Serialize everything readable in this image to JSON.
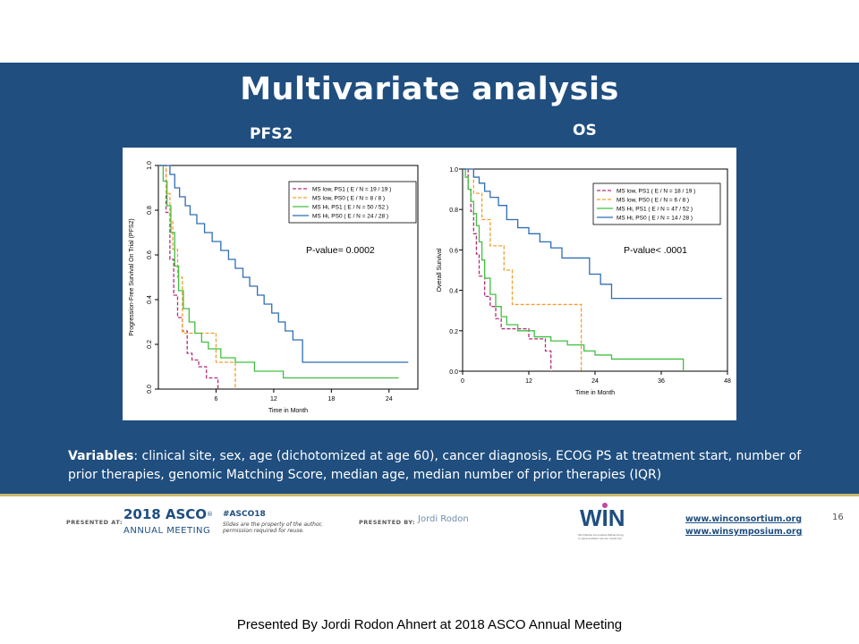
{
  "slide": {
    "title": "Multivariate analysis",
    "left_label": "PFS2",
    "right_label": "OS",
    "variables_label": "Variables",
    "variables_text": ": clinical site, sex, age (dichotomized at age 60), cancer diagnosis, ECOG PS at treatment start, number of prior therapies, genomic Matching Score, median age, median number of prior therapies (IQR)",
    "page_number": "16",
    "caption": "Presented By Jordi Rodon Ahnert at 2018 ASCO Annual Meeting"
  },
  "footer": {
    "presented_at": "PRESENTED AT:",
    "asco_year": "2018",
    "asco_name": "ASCO",
    "asco_reg": "®",
    "asco_sub": "ANNUAL MEETING",
    "hashtag": "#ASCO18",
    "note_line1": "Slides are the property of the author,",
    "note_line2": "permission required for reuse.",
    "presented_by": "PRESENTED BY:",
    "presenter": "Jordi Rodon",
    "win_logo": "WIN",
    "win_small": "Worldwide Innovative Networking in personalized cancer medicine",
    "link1": "www.winconsortium.org",
    "link2": "www.winsymposium.org"
  },
  "chart_data": [
    {
      "type": "line",
      "title": "",
      "xlabel": "Time in Month",
      "ylabel": "Progression-Free Survival On Trial (PFS2)",
      "xlim": [
        0,
        27
      ],
      "ylim": [
        0,
        1
      ],
      "xticks": [
        6,
        12,
        18,
        24
      ],
      "yticks": [
        0.0,
        0.2,
        0.4,
        0.6,
        0.8,
        1.0
      ],
      "ytick_labels": [
        "0.0",
        "0.2",
        "0.4",
        "0.6",
        "0.8",
        "1.0"
      ],
      "annotation": "P-value= 0.0002",
      "legend_position": "top-right",
      "series": [
        {
          "name": "MS low, PS1  ( E / N = 19 / 19 )",
          "color": "#b0307a",
          "dash": "dash",
          "x": [
            0,
            0.8,
            1.2,
            1.6,
            2.0,
            2.5,
            3.0,
            3.5,
            4.2,
            5.0,
            5.5,
            6.2
          ],
          "y": [
            1.0,
            0.79,
            0.58,
            0.42,
            0.32,
            0.26,
            0.16,
            0.13,
            0.1,
            0.05,
            0.05,
            0.0
          ]
        },
        {
          "name": "MS low, PS0  ( E / N = 8 / 8 )",
          "color": "#f0a030",
          "dash": "dash",
          "x": [
            0,
            0.8,
            1.2,
            1.5,
            2.0,
            2.5,
            6.0,
            8.0
          ],
          "y": [
            1.0,
            0.875,
            0.75,
            0.625,
            0.5,
            0.25,
            0.12,
            0.0
          ]
        },
        {
          "name": "MS Hi, PS1  ( E / N = 50 / 52 )",
          "color": "#40c040",
          "dash": "solid",
          "x": [
            0,
            0.5,
            0.9,
            1.3,
            1.7,
            2.1,
            2.6,
            3.2,
            3.8,
            4.5,
            5.2,
            6.5,
            8.0,
            10.0,
            13.0,
            25.0
          ],
          "y": [
            1.0,
            0.93,
            0.82,
            0.7,
            0.55,
            0.44,
            0.36,
            0.3,
            0.25,
            0.21,
            0.18,
            0.14,
            0.12,
            0.08,
            0.05,
            0.05
          ]
        },
        {
          "name": "MS Hi, PS0  ( E / N = 24 / 28 )",
          "color": "#2f6db5",
          "dash": "solid",
          "x": [
            0,
            1.2,
            1.7,
            2.2,
            2.8,
            3.3,
            4.0,
            4.8,
            5.6,
            6.5,
            7.3,
            8.0,
            8.8,
            9.5,
            10.3,
            11.0,
            11.8,
            12.5,
            13.2,
            14.0,
            15.0,
            26.0
          ],
          "y": [
            1.0,
            0.96,
            0.9,
            0.86,
            0.82,
            0.78,
            0.74,
            0.7,
            0.66,
            0.62,
            0.58,
            0.54,
            0.5,
            0.46,
            0.42,
            0.38,
            0.34,
            0.3,
            0.26,
            0.22,
            0.12,
            0.12
          ]
        }
      ]
    },
    {
      "type": "line",
      "title": "",
      "xlabel": "Time in Month",
      "ylabel": "Overall Survival",
      "xlim": [
        0,
        48
      ],
      "ylim": [
        0,
        1
      ],
      "xticks": [
        0,
        12,
        24,
        36,
        48
      ],
      "yticks": [
        0.0,
        0.2,
        0.4,
        0.6,
        0.8,
        1.0
      ],
      "ytick_labels": [
        "0.0",
        "0.2",
        "0.4",
        "0.6",
        "0.8",
        "1.0"
      ],
      "annotation": "P-value< .0001",
      "legend_position": "top-right",
      "series": [
        {
          "name": "MS low, PS1  ( E / N = 18 / 19 )",
          "color": "#b0307a",
          "dash": "dash",
          "x": [
            0,
            1.0,
            1.5,
            2.0,
            2.5,
            3.0,
            4.0,
            5.0,
            6.0,
            7.0,
            12.0,
            15.0,
            16.0
          ],
          "y": [
            1.0,
            0.9,
            0.79,
            0.68,
            0.58,
            0.47,
            0.37,
            0.32,
            0.26,
            0.21,
            0.16,
            0.1,
            0.0
          ]
        },
        {
          "name": "MS low, PS0  ( E / N = 6 / 8 )",
          "color": "#f0a030",
          "dash": "dash",
          "x": [
            0,
            2.0,
            3.5,
            5.0,
            7.5,
            9.0,
            21.0,
            21.5
          ],
          "y": [
            1.0,
            0.88,
            0.75,
            0.62,
            0.5,
            0.33,
            0.33,
            0.0
          ]
        },
        {
          "name": "MS Hi, PS1  ( E / N = 47 / 52 )",
          "color": "#40c040",
          "dash": "solid",
          "x": [
            0,
            0.5,
            1.0,
            1.5,
            2.0,
            2.5,
            3.0,
            3.5,
            4.0,
            5.0,
            6.0,
            7.0,
            8.0,
            10.0,
            13.0,
            16.0,
            19.0,
            22.0,
            24.0,
            27.0,
            40.0
          ],
          "y": [
            1.0,
            0.96,
            0.9,
            0.84,
            0.78,
            0.72,
            0.64,
            0.55,
            0.46,
            0.38,
            0.32,
            0.27,
            0.23,
            0.2,
            0.17,
            0.15,
            0.13,
            0.1,
            0.08,
            0.06,
            0.0
          ]
        },
        {
          "name": "MS Hi, PS0  ( E / N = 14 / 28 )",
          "color": "#2f6db5",
          "dash": "solid",
          "x": [
            0,
            2.0,
            3.0,
            4.0,
            5.0,
            6.5,
            8.0,
            10.0,
            12.0,
            14.0,
            16.0,
            18.0,
            23.0,
            25.0,
            27.0,
            47.0
          ],
          "y": [
            1.0,
            0.96,
            0.93,
            0.89,
            0.86,
            0.82,
            0.75,
            0.71,
            0.68,
            0.64,
            0.61,
            0.56,
            0.48,
            0.43,
            0.36,
            0.36
          ]
        }
      ]
    }
  ]
}
